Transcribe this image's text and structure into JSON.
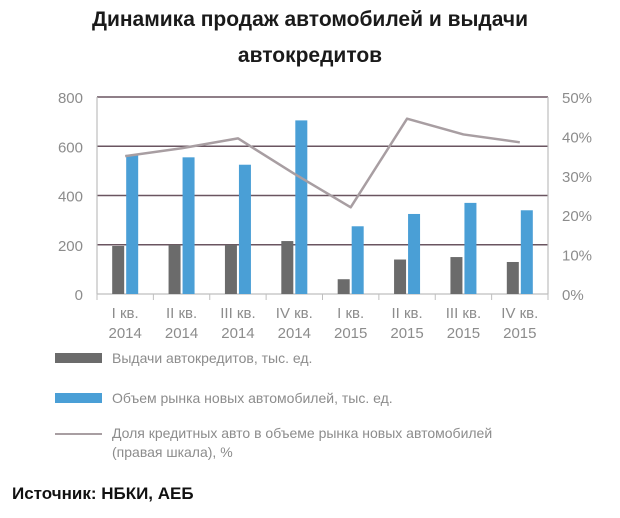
{
  "title_line1": "Динамика  продаж автомобилей и выдачи",
  "title_line2": "автокредитов",
  "source": "Источник: НБКИ, АЕБ",
  "colors": {
    "loans": "#6b6b6b",
    "market": "#4a9fd6",
    "share": "#a89ea2",
    "grid": "#6a5560",
    "axis_text": "#8c8c8c"
  },
  "chart_data": {
    "type": "bar",
    "title": "Динамика  продаж автомобилей и выдачи автокредитов",
    "categories": [
      [
        "I кв.",
        "2014"
      ],
      [
        "II кв.",
        "2014"
      ],
      [
        "III кв.",
        "2014"
      ],
      [
        "IV кв.",
        "2014"
      ],
      [
        "I кв.",
        "2015"
      ],
      [
        "II кв.",
        "2015"
      ],
      [
        "III кв.",
        "2015"
      ],
      [
        "IV кв.",
        "2015"
      ]
    ],
    "y_left": {
      "ylim": [
        0,
        800
      ],
      "ticks": [
        "0",
        "200",
        "400",
        "600",
        "800"
      ]
    },
    "y_right": {
      "ylim": [
        0,
        50
      ],
      "ticks": [
        "0%",
        "10%",
        "20%",
        "30%",
        "40%",
        "50%"
      ]
    },
    "grid": true,
    "legend_position": "bottom",
    "series": [
      {
        "name": "Выдачи автокредитов, тыс. ед.",
        "kind": "bar",
        "axis": "left",
        "values": [
          195,
          200,
          200,
          215,
          60,
          140,
          150,
          130
        ]
      },
      {
        "name": "Объем рынка новых автомобилей, тыс. ед.",
        "kind": "bar",
        "axis": "left",
        "values": [
          565,
          555,
          525,
          705,
          275,
          325,
          370,
          340
        ]
      },
      {
        "name_line1": "Доля кредитных авто в объеме рынка новых автомобилей",
        "name_line2": "(правая шкала), %",
        "kind": "line",
        "axis": "right",
        "values": [
          35,
          37,
          39.5,
          30.5,
          22,
          44.5,
          40.5,
          38.5
        ]
      }
    ]
  }
}
